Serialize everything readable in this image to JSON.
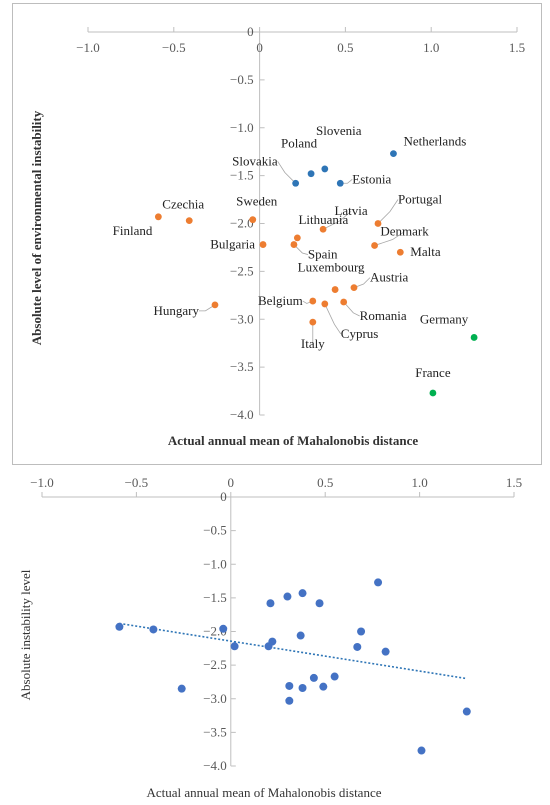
{
  "chart_data": [
    {
      "type": "scatter",
      "xlabel": "Actual annual mean of Mahalonobis distance",
      "ylabel": "Absolute level of environmental instability",
      "xlim": [
        -1.0,
        1.5
      ],
      "ylim": [
        -4.0,
        0
      ],
      "xticks": [
        "−1.0",
        "−0.5",
        "0",
        "0.5",
        "1.0",
        "1.5"
      ],
      "yticks": [
        "0",
        "−0.5",
        "−1.0",
        "−1.5",
        "−2.0",
        "−2.5",
        "−3.0",
        "−3.5",
        "−4.0"
      ],
      "grid": false,
      "colors": {
        "blue": "#2e75b6",
        "orange": "#ed7d31",
        "green": "#00b050"
      },
      "points": [
        {
          "label": "Slovenia",
          "x": 0.38,
          "y": -1.43,
          "color": "blue"
        },
        {
          "label": "Poland",
          "x": 0.3,
          "y": -1.48,
          "color": "blue"
        },
        {
          "label": "Slovakia",
          "x": 0.21,
          "y": -1.58,
          "color": "blue"
        },
        {
          "label": "Estonia",
          "x": 0.47,
          "y": -1.58,
          "color": "blue"
        },
        {
          "label": "Netherlands",
          "x": 0.78,
          "y": -1.27,
          "color": "blue"
        },
        {
          "label": "Finland",
          "x": -0.59,
          "y": -1.93,
          "color": "orange"
        },
        {
          "label": "Czechia",
          "x": -0.41,
          "y": -1.97,
          "color": "orange"
        },
        {
          "label": "Sweden",
          "x": -0.04,
          "y": -1.96,
          "color": "orange"
        },
        {
          "label": "Bulgaria",
          "x": 0.02,
          "y": -2.22,
          "color": "orange"
        },
        {
          "label": "Lithuania",
          "x": 0.22,
          "y": -2.15,
          "color": "orange"
        },
        {
          "label": "Spain",
          "x": 0.2,
          "y": -2.22,
          "color": "orange"
        },
        {
          "label": "Latvia",
          "x": 0.37,
          "y": -2.06,
          "color": "orange"
        },
        {
          "label": "Portugal",
          "x": 0.69,
          "y": -2.0,
          "color": "orange"
        },
        {
          "label": "Denmark",
          "x": 0.67,
          "y": -2.23,
          "color": "orange"
        },
        {
          "label": "Malta",
          "x": 0.82,
          "y": -2.3,
          "color": "orange"
        },
        {
          "label": "Luxembourg",
          "x": 0.44,
          "y": -2.69,
          "color": "orange"
        },
        {
          "label": "Austria",
          "x": 0.55,
          "y": -2.67,
          "color": "orange"
        },
        {
          "label": "Belgium",
          "x": 0.31,
          "y": -2.81,
          "color": "orange"
        },
        {
          "label": "Romania",
          "x": 0.49,
          "y": -2.82,
          "color": "orange"
        },
        {
          "label": "Hungary",
          "x": -0.26,
          "y": -2.85,
          "color": "orange"
        },
        {
          "label": "Cyprus",
          "x": 0.38,
          "y": -2.84,
          "color": "orange"
        },
        {
          "label": "Italy",
          "x": 0.31,
          "y": -3.03,
          "color": "orange"
        },
        {
          "label": "Germany",
          "x": 1.25,
          "y": -3.19,
          "color": "green"
        },
        {
          "label": "France",
          "x": 1.01,
          "y": -3.77,
          "color": "green"
        }
      ]
    },
    {
      "type": "scatter",
      "xlabel": "Actual annual mean of Mahalonobis distance",
      "ylabel": "Absolute instability level",
      "xlim": [
        -1.0,
        1.5
      ],
      "ylim": [
        -4.0,
        0
      ],
      "xticks": [
        "−1.0",
        "−0.5",
        "0",
        "0.5",
        "1.0",
        "1.5"
      ],
      "yticks": [
        "0",
        "−0.5",
        "−1.0",
        "−1.5",
        "−2.0",
        "−2.5",
        "−3.0",
        "−3.5",
        "−4.0"
      ],
      "grid": false,
      "trendline": {
        "style": "dotted linear",
        "x": [
          -0.59,
          1.25
        ],
        "y": [
          -1.88,
          -2.7
        ]
      },
      "colors": {
        "point": "#4472c4",
        "trend": "#2e75b6"
      },
      "points": [
        {
          "x": 0.38,
          "y": -1.43
        },
        {
          "x": 0.3,
          "y": -1.48
        },
        {
          "x": 0.21,
          "y": -1.58
        },
        {
          "x": 0.47,
          "y": -1.58
        },
        {
          "x": 0.78,
          "y": -1.27
        },
        {
          "x": -0.59,
          "y": -1.93
        },
        {
          "x": -0.41,
          "y": -1.97
        },
        {
          "x": -0.04,
          "y": -1.96
        },
        {
          "x": 0.02,
          "y": -2.22
        },
        {
          "x": 0.22,
          "y": -2.15
        },
        {
          "x": 0.2,
          "y": -2.22
        },
        {
          "x": 0.37,
          "y": -2.06
        },
        {
          "x": 0.69,
          "y": -2.0
        },
        {
          "x": 0.67,
          "y": -2.23
        },
        {
          "x": 0.82,
          "y": -2.3
        },
        {
          "x": 0.44,
          "y": -2.69
        },
        {
          "x": 0.55,
          "y": -2.67
        },
        {
          "x": 0.31,
          "y": -2.81
        },
        {
          "x": 0.49,
          "y": -2.82
        },
        {
          "x": -0.26,
          "y": -2.85
        },
        {
          "x": 0.38,
          "y": -2.84
        },
        {
          "x": 0.31,
          "y": -3.03
        },
        {
          "x": 1.25,
          "y": -3.19
        },
        {
          "x": 1.01,
          "y": -3.77
        }
      ]
    }
  ]
}
